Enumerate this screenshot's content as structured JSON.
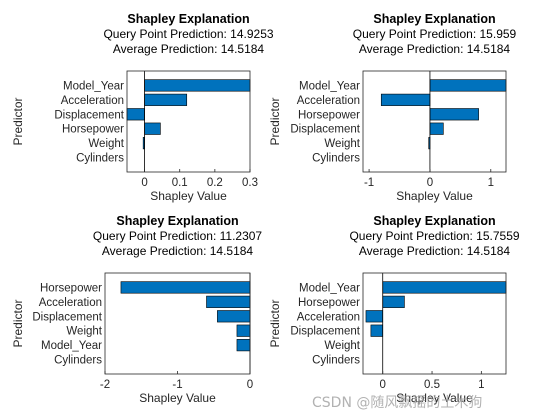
{
  "chart_data": [
    {
      "type": "bar",
      "orientation": "horizontal",
      "title": "Shapley Explanation",
      "subtitle_lines": [
        "Query Point Prediction: 14.9253",
        "Average Prediction: 14.5184"
      ],
      "xlabel": "Shapley Value",
      "ylabel": "Predictor",
      "categories": [
        "Model_Year",
        "Acceleration",
        "Displacement",
        "Horsepower",
        "Weight",
        "Cylinders"
      ],
      "values": [
        0.3,
        0.12,
        -0.05,
        0.045,
        -0.004,
        0
      ],
      "xlim": [
        -0.05,
        0.3
      ],
      "xticks": [
        0,
        0.1,
        0.2,
        0.3
      ],
      "xtick_labels": [
        "0",
        "0.1",
        "0.2",
        "0.3"
      ],
      "bar_color": "#0072bd"
    },
    {
      "type": "bar",
      "orientation": "horizontal",
      "title": "Shapley Explanation",
      "subtitle_lines": [
        "Query Point Prediction: 15.959",
        "Average Prediction: 14.5184"
      ],
      "xlabel": "Shapley Value",
      "ylabel": "Predictor",
      "categories": [
        "Model_Year",
        "Acceleration",
        "Horsepower",
        "Displacement",
        "Weight",
        "Cylinders"
      ],
      "values": [
        1.25,
        -0.8,
        0.8,
        0.22,
        -0.02,
        0
      ],
      "xlim": [
        -1.1,
        1.25
      ],
      "xticks": [
        -1,
        0,
        1
      ],
      "xtick_labels": [
        "-1",
        "0",
        "1"
      ],
      "bar_color": "#0072bd"
    },
    {
      "type": "bar",
      "orientation": "horizontal",
      "title": "Shapley Explanation",
      "subtitle_lines": [
        "Query Point Prediction: 11.2307",
        "Average Prediction: 14.5184"
      ],
      "xlabel": "Shapley Value",
      "ylabel": "Predictor",
      "categories": [
        "Horsepower",
        "Acceleration",
        "Displacement",
        "Weight",
        "Model_Year",
        "Cylinders"
      ],
      "values": [
        -1.78,
        -0.6,
        -0.45,
        -0.18,
        -0.18,
        0
      ],
      "xlim": [
        -2,
        0
      ],
      "xticks": [
        -2,
        -1,
        0
      ],
      "xtick_labels": [
        "-2",
        "-1",
        "0"
      ],
      "bar_color": "#0072bd"
    },
    {
      "type": "bar",
      "orientation": "horizontal",
      "title": "Shapley Explanation",
      "subtitle_lines": [
        "Query Point Prediction: 15.7559",
        "Average Prediction: 14.5184"
      ],
      "xlabel": "Shapley Value",
      "ylabel": "Predictor",
      "categories": [
        "Model_Year",
        "Horsepower",
        "Acceleration",
        "Displacement",
        "Weight",
        "Cylinders"
      ],
      "values": [
        1.25,
        0.22,
        -0.17,
        -0.12,
        0,
        0
      ],
      "xlim": [
        -0.2,
        1.25
      ],
      "xticks": [
        0,
        0.5,
        1
      ],
      "xtick_labels": [
        "0",
        "0.5",
        "1"
      ],
      "bar_color": "#0072bd"
    }
  ],
  "watermark": "CSDN @随风飘摇的土木狗"
}
